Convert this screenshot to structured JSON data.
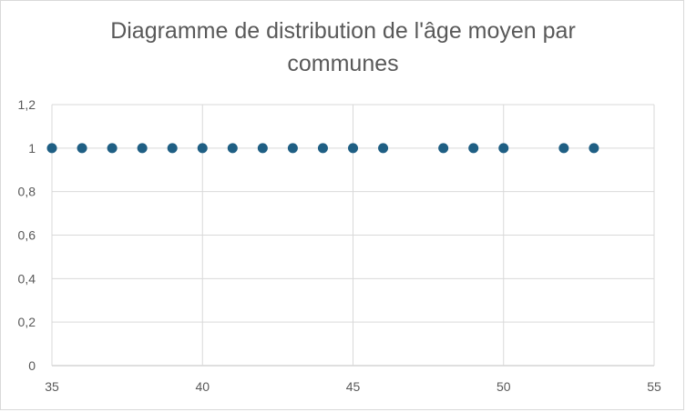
{
  "chart_data": {
    "type": "scatter",
    "title": "Diagramme de distribution de l'âge moyen par communes",
    "title_lines": [
      "Diagramme de distribution de l'âge moyen par",
      "communes"
    ],
    "xlabel": "",
    "ylabel": "",
    "xlim": [
      35,
      55
    ],
    "ylim": [
      0,
      1.2
    ],
    "x_ticks": [
      35,
      40,
      45,
      50,
      55
    ],
    "x_tick_labels": [
      "35",
      "40",
      "45",
      "50",
      "55"
    ],
    "y_ticks": [
      0,
      0.2,
      0.4,
      0.6,
      0.8,
      1,
      1.2
    ],
    "y_tick_labels": [
      "0",
      "0,2",
      "0,4",
      "0,6",
      "0,8",
      "1",
      "1,2"
    ],
    "grid": true,
    "legend": "none",
    "marker_color": "#1f5f84",
    "grid_color": "#d9d9d9",
    "points": [
      {
        "x": 35,
        "y": 1
      },
      {
        "x": 36,
        "y": 1
      },
      {
        "x": 37,
        "y": 1
      },
      {
        "x": 38,
        "y": 1
      },
      {
        "x": 39,
        "y": 1
      },
      {
        "x": 40,
        "y": 1
      },
      {
        "x": 41,
        "y": 1
      },
      {
        "x": 42,
        "y": 1
      },
      {
        "x": 43,
        "y": 1
      },
      {
        "x": 44,
        "y": 1
      },
      {
        "x": 45,
        "y": 1
      },
      {
        "x": 46,
        "y": 1
      },
      {
        "x": 48,
        "y": 1
      },
      {
        "x": 49,
        "y": 1
      },
      {
        "x": 50,
        "y": 1
      },
      {
        "x": 52,
        "y": 1
      },
      {
        "x": 53,
        "y": 1
      }
    ]
  }
}
